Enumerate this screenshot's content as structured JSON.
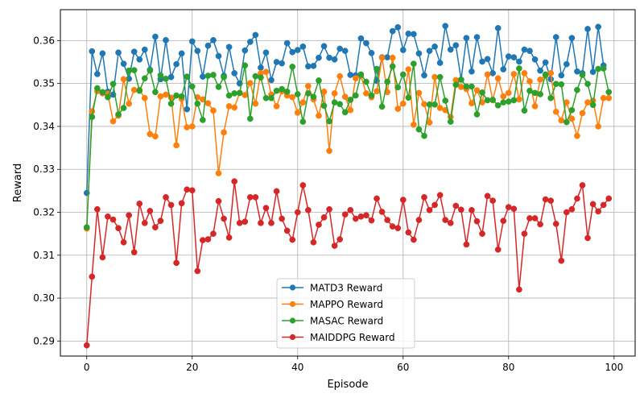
{
  "chart_data": {
    "type": "line",
    "xlabel": "Episode",
    "ylabel": "Reward",
    "xlim": [
      -5,
      104
    ],
    "ylim": [
      0.2865,
      0.3672
    ],
    "xticks": [
      0,
      20,
      40,
      60,
      80,
      100
    ],
    "yticks": [
      0.29,
      0.3,
      0.31,
      0.32,
      0.33,
      0.34,
      0.35,
      0.36
    ],
    "ytick_labels": [
      "0.29",
      "0.30",
      "0.31",
      "0.32",
      "0.33",
      "0.34",
      "0.35",
      "0.36"
    ],
    "grid": true,
    "legend_position": "bottom-center",
    "series": [
      {
        "name": "MATD3 Reward",
        "color": "#1f77b4",
        "values": [
          0.3245,
          0.3575,
          0.3522,
          0.357,
          0.3481,
          0.3474,
          0.3572,
          0.3546,
          0.3511,
          0.3574,
          0.3556,
          0.3579,
          0.3532,
          0.3609,
          0.351,
          0.3601,
          0.3515,
          0.3545,
          0.357,
          0.344,
          0.3598,
          0.3576,
          0.3516,
          0.3588,
          0.3601,
          0.3564,
          0.3518,
          0.3585,
          0.3524,
          0.35,
          0.3577,
          0.3597,
          0.3613,
          0.3537,
          0.3572,
          0.3508,
          0.355,
          0.3547,
          0.3594,
          0.3573,
          0.3578,
          0.3586,
          0.354,
          0.3541,
          0.356,
          0.3587,
          0.356,
          0.3556,
          0.3581,
          0.3576,
          0.352,
          0.3519,
          0.3605,
          0.3594,
          0.3571,
          0.3506,
          0.3561,
          0.3561,
          0.3622,
          0.3631,
          0.3578,
          0.3616,
          0.3615,
          0.357,
          0.3519,
          0.3576,
          0.3586,
          0.3548,
          0.3634,
          0.3579,
          0.3589,
          0.3509,
          0.3606,
          0.3528,
          0.3608,
          0.3551,
          0.3557,
          0.3524,
          0.3629,
          0.3533,
          0.3563,
          0.3561,
          0.3551,
          0.3579,
          0.3576,
          0.3556,
          0.353,
          0.3549,
          0.351,
          0.3608,
          0.3519,
          0.3545,
          0.3606,
          0.3528,
          0.3524,
          0.3627,
          0.3527,
          0.3632,
          0.3542
        ]
      },
      {
        "name": "MAPPO Reward",
        "color": "#ff7f0e",
        "values": [
          0.3162,
          0.3435,
          0.3482,
          0.3477,
          0.3476,
          0.3412,
          0.3425,
          0.351,
          0.3453,
          0.3485,
          0.3485,
          0.3466,
          0.3382,
          0.3377,
          0.347,
          0.3474,
          0.3467,
          0.3356,
          0.3464,
          0.3398,
          0.34,
          0.3468,
          0.3463,
          0.3454,
          0.3437,
          0.3291,
          0.3386,
          0.3447,
          0.3444,
          0.3478,
          0.3473,
          0.3501,
          0.3453,
          0.3524,
          0.3527,
          0.3474,
          0.3447,
          0.3482,
          0.3472,
          0.3468,
          0.3432,
          0.3456,
          0.3494,
          0.3463,
          0.3425,
          0.3481,
          0.3343,
          0.3477,
          0.3517,
          0.3469,
          0.3438,
          0.3512,
          0.3518,
          0.3477,
          0.3468,
          0.3482,
          0.356,
          0.348,
          0.356,
          0.3441,
          0.3453,
          0.3533,
          0.3404,
          0.3478,
          0.3452,
          0.3409,
          0.3515,
          0.3443,
          0.3438,
          0.3422,
          0.3508,
          0.3492,
          0.3487,
          0.3454,
          0.3484,
          0.3456,
          0.3521,
          0.3461,
          0.3512,
          0.347,
          0.3478,
          0.3522,
          0.3463,
          0.3524,
          0.3505,
          0.3447,
          0.3509,
          0.3518,
          0.3524,
          0.3434,
          0.3414,
          0.3456,
          0.3418,
          0.3378,
          0.3431,
          0.3456,
          0.346,
          0.34,
          0.3466,
          0.3466
        ]
      },
      {
        "name": "MASAC Reward",
        "color": "#2ca02c",
        "values": [
          0.3165,
          0.3422,
          0.3489,
          0.348,
          0.3468,
          0.3499,
          0.3428,
          0.3443,
          0.353,
          0.3531,
          0.3483,
          0.3512,
          0.353,
          0.348,
          0.3519,
          0.3511,
          0.3453,
          0.3472,
          0.347,
          0.3516,
          0.3493,
          0.3453,
          0.3415,
          0.3518,
          0.352,
          0.3492,
          0.3515,
          0.3472,
          0.3477,
          0.3478,
          0.3542,
          0.3418,
          0.3517,
          0.3514,
          0.3466,
          0.3466,
          0.3483,
          0.3487,
          0.3481,
          0.3539,
          0.3475,
          0.3411,
          0.3477,
          0.3469,
          0.3507,
          0.3448,
          0.3412,
          0.3456,
          0.3452,
          0.3433,
          0.3462,
          0.3472,
          0.3521,
          0.3504,
          0.3472,
          0.3534,
          0.3446,
          0.3504,
          0.354,
          0.3491,
          0.3521,
          0.3467,
          0.3546,
          0.3393,
          0.3378,
          0.3451,
          0.3451,
          0.3515,
          0.346,
          0.3411,
          0.3497,
          0.3509,
          0.3493,
          0.3493,
          0.3428,
          0.3479,
          0.3461,
          0.3462,
          0.3449,
          0.3456,
          0.3458,
          0.3461,
          0.3535,
          0.3437,
          0.3483,
          0.3478,
          0.3475,
          0.3521,
          0.3466,
          0.3499,
          0.3498,
          0.341,
          0.3438,
          0.3485,
          0.352,
          0.3499,
          0.345,
          0.3534,
          0.3535,
          0.348
        ]
      },
      {
        "name": "MAIDDPG Reward",
        "color": "#d62728",
        "values": [
          0.289,
          0.305,
          0.3207,
          0.3095,
          0.319,
          0.3183,
          0.3163,
          0.313,
          0.3193,
          0.3107,
          0.322,
          0.3175,
          0.3203,
          0.3165,
          0.318,
          0.3235,
          0.3217,
          0.3082,
          0.3221,
          0.3253,
          0.3251,
          0.3063,
          0.3135,
          0.3137,
          0.315,
          0.3226,
          0.3185,
          0.3141,
          0.3272,
          0.3175,
          0.3178,
          0.3235,
          0.3235,
          0.3175,
          0.321,
          0.3175,
          0.3249,
          0.3185,
          0.3157,
          0.3136,
          0.32,
          0.3263,
          0.3205,
          0.313,
          0.3171,
          0.3188,
          0.3207,
          0.3122,
          0.3137,
          0.3195,
          0.3205,
          0.3185,
          0.319,
          0.3193,
          0.3181,
          0.3232,
          0.3201,
          0.3182,
          0.3167,
          0.3163,
          0.3229,
          0.3153,
          0.3136,
          0.3182,
          0.3235,
          0.3205,
          0.3217,
          0.324,
          0.3182,
          0.3175,
          0.3215,
          0.3206,
          0.3125,
          0.3205,
          0.3179,
          0.315,
          0.3238,
          0.3227,
          0.3113,
          0.318,
          0.3212,
          0.3208,
          0.302,
          0.315,
          0.3186,
          0.3186,
          0.3172,
          0.323,
          0.3227,
          0.3173,
          0.3087,
          0.32,
          0.3207,
          0.3232,
          0.3263,
          0.314,
          0.3219,
          0.3202,
          0.3217,
          0.3232
        ]
      }
    ]
  }
}
